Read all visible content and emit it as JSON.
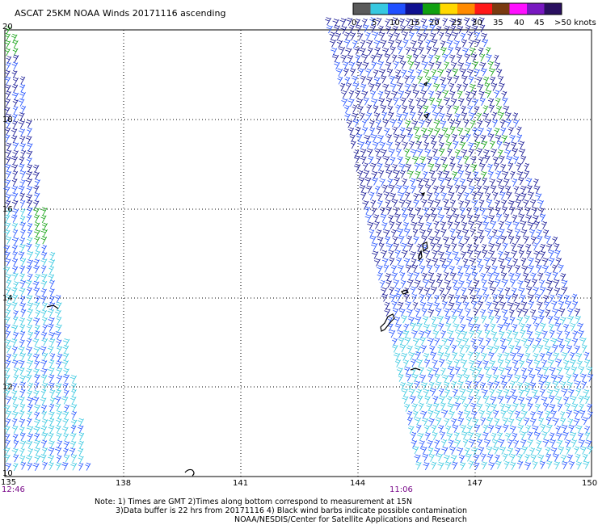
{
  "title": "ASCAT 25KM NOAA Winds 20171116 ascending",
  "legend": {
    "labels": [
      "0",
      "5",
      "10",
      "15",
      "20",
      "25",
      "30",
      "35",
      "40",
      "45",
      ">50 knots"
    ],
    "colors": [
      "#5a5a5a",
      "#36c8e0",
      "#2050ff",
      "#0f1090",
      "#10a010",
      "#ffd800",
      "#ff8a00",
      "#ff1818",
      "#7a3a10",
      "#ff10ff",
      "#7818c0",
      "#2a1060"
    ]
  },
  "lat_labels": [
    "20",
    "18",
    "16",
    "14",
    "12",
    "10"
  ],
  "lon_labels": [
    "135",
    "138",
    "141",
    "144",
    "147",
    "150"
  ],
  "pass_times": [
    "12:46",
    "11:06"
  ],
  "notes": [
    "Note: 1) Times are GMT 2)Times along bottom correspond to measurement at 15N",
    "3)Data buffer is 22 hrs from 20171116 4) Black wind barbs indicate possible contamination",
    "NOAA/NESDIS/Center for Satellite Applications and Research"
  ],
  "palette": {
    "grid": "#000000",
    "coast": "#000000",
    "barb_dark": "#0f1090",
    "barb_blue": "#2050ff",
    "barb_cyan": "#36c8e0",
    "barb_green": "#10a010"
  }
}
